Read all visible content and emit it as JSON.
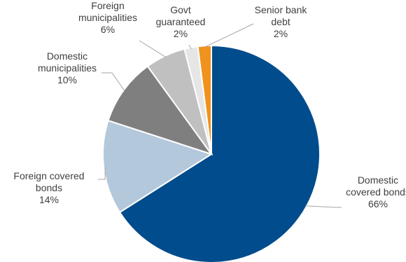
{
  "chart_data": {
    "type": "pie",
    "title": "",
    "slices": [
      {
        "name_lines": [
          "Domestic",
          "covered bonds"
        ],
        "pct_label": "66%",
        "value": 66,
        "color": "#004C8C"
      },
      {
        "name_lines": [
          "Foreign covered",
          "bonds"
        ],
        "pct_label": "14%",
        "value": 14,
        "color": "#B4C8DC"
      },
      {
        "name_lines": [
          "Domestic",
          "municipalities"
        ],
        "pct_label": "10%",
        "value": 10,
        "color": "#7F7F7F"
      },
      {
        "name_lines": [
          "Foreign",
          "municipalities"
        ],
        "pct_label": "6%",
        "value": 6,
        "color": "#C0C0C0"
      },
      {
        "name_lines": [
          "Govt",
          "guaranteed"
        ],
        "pct_label": "2%",
        "value": 2,
        "color": "#E6E6E6"
      },
      {
        "name_lines": [
          "Senior bank",
          "debt"
        ],
        "pct_label": "2%",
        "value": 2,
        "color": "#F0921E"
      }
    ],
    "start": "12 o'clock",
    "direction": "clockwise",
    "legend": "none"
  }
}
